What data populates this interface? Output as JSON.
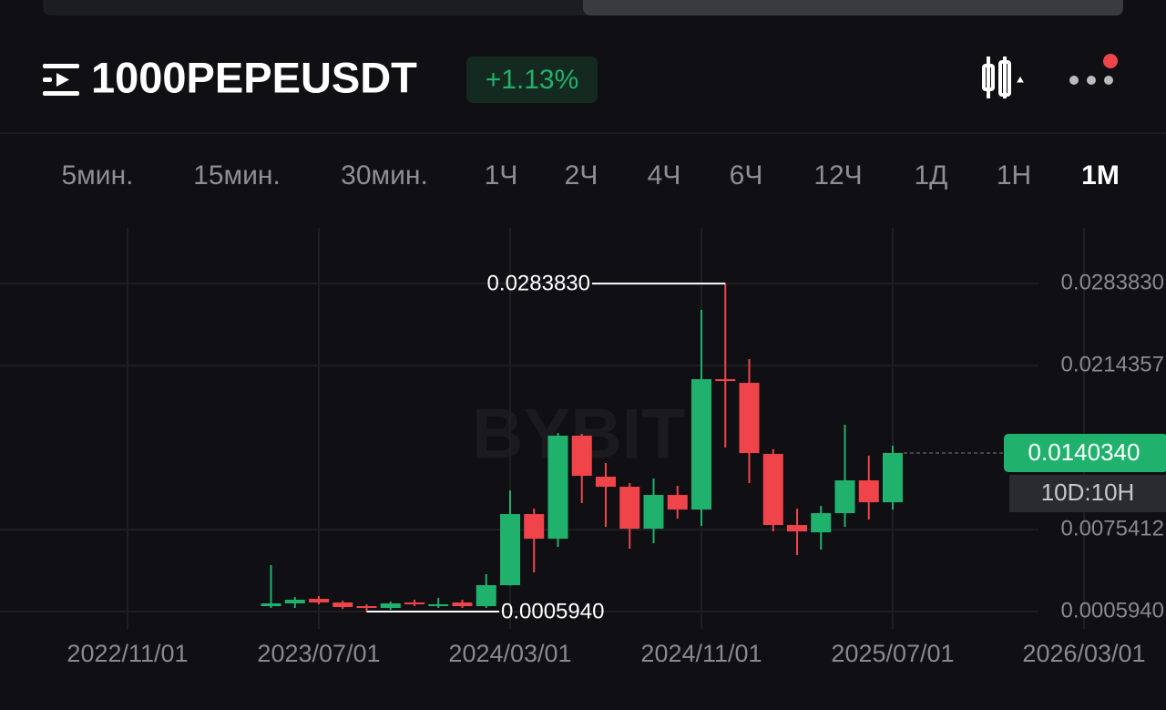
{
  "header": {
    "symbol": "1000PEPEUSDT",
    "change": "+1.13%"
  },
  "timeframes": {
    "items": [
      "5мин.",
      "15мин.",
      "30мин.",
      "1Ч",
      "2Ч",
      "4Ч",
      "6Ч",
      "12Ч",
      "1Д",
      "1Н",
      "1М"
    ],
    "active": 10
  },
  "chart_data": {
    "type": "candlestick",
    "watermark": "BYBIT",
    "x": [
      "2023/05/01",
      "2023/06/01",
      "2023/07/01",
      "2023/08/01",
      "2023/09/01",
      "2023/10/01",
      "2023/11/01",
      "2023/12/01",
      "2024/01/01",
      "2024/02/01",
      "2024/03/01",
      "2024/04/01",
      "2024/05/01",
      "2024/06/01",
      "2024/07/01",
      "2024/08/01",
      "2024/09/01",
      "2024/10/01",
      "2024/11/01",
      "2024/12/01",
      "2025/01/01",
      "2025/02/01",
      "2025/03/01",
      "2025/04/01",
      "2025/05/01",
      "2025/06/01",
      "2025/07/01"
    ],
    "open": [
      0.001057,
      0.001289,
      0.001675,
      0.001366,
      0.001057,
      0.000903,
      0.001366,
      0.001057,
      0.001366,
      0.001057,
      0.002833,
      0.008854,
      0.00677,
      0.015494,
      0.01202,
      0.01117,
      0.007619,
      0.010476,
      0.00924,
      0.02028,
      0.019971,
      0.01395,
      0.007928,
      0.00731,
      0.008932,
      0.011711,
      0.009858
    ],
    "high": [
      0.004531,
      0.001829,
      0.001906,
      0.00152,
      0.001212,
      0.001443,
      0.001598,
      0.001752,
      0.001598,
      0.003759,
      0.010862,
      0.009318,
      0.015725,
      0.015648,
      0.013178,
      0.011479,
      0.011865,
      0.011248,
      0.026147,
      0.028383,
      0.021978,
      0.014336,
      0.009318,
      0.009549,
      0.01642,
      0.013795,
      0.014644
    ],
    "low": [
      0.000903,
      0.000903,
      0.001212,
      0.000826,
      0.000594,
      0.000748,
      0.001057,
      0.000903,
      0.000903,
      0.000903,
      0.0028,
      0.003914,
      0.006075,
      0.009781,
      0.007774,
      0.005921,
      0.006384,
      0.008468,
      0.007851,
      0.01449,
      0.011479,
      0.007388,
      0.00538,
      0.005844,
      0.007774,
      0.008391,
      0.00924
    ],
    "close": [
      0.001289,
      0.001598,
      0.001366,
      0.00098,
      0.000903,
      0.001289,
      0.001212,
      0.001212,
      0.001057,
      0.002833,
      0.008854,
      0.00677,
      0.015494,
      0.012097,
      0.01117,
      0.007619,
      0.010476,
      0.00924,
      0.02028,
      0.020126,
      0.014027,
      0.007928,
      0.007388,
      0.008932,
      0.011711,
      0.009858,
      0.014034
    ],
    "colors": {
      "up": "#20b26c",
      "down": "#ef454a"
    },
    "ylim": [
      -0.00087,
      0.0331
    ],
    "yticks": [
      {
        "value": 0.000594,
        "label": "0.0005940"
      },
      0.0075412,
      0.0214357,
      {
        "value": 0.028383,
        "label": "0.0283830"
      }
    ],
    "xticks": [
      "2022/11/01",
      "2023/07/01",
      "2024/03/01",
      "2024/11/01",
      "2025/07/01",
      "2026/03/01"
    ],
    "grid": true,
    "max_marker": {
      "value": 0.028383,
      "label": "0.0283830"
    },
    "min_marker": {
      "value": 0.000594,
      "label": "0.0005940"
    },
    "last_price": {
      "value": 0.014034,
      "label": "0.0140340"
    },
    "countdown": "10D:10H"
  }
}
